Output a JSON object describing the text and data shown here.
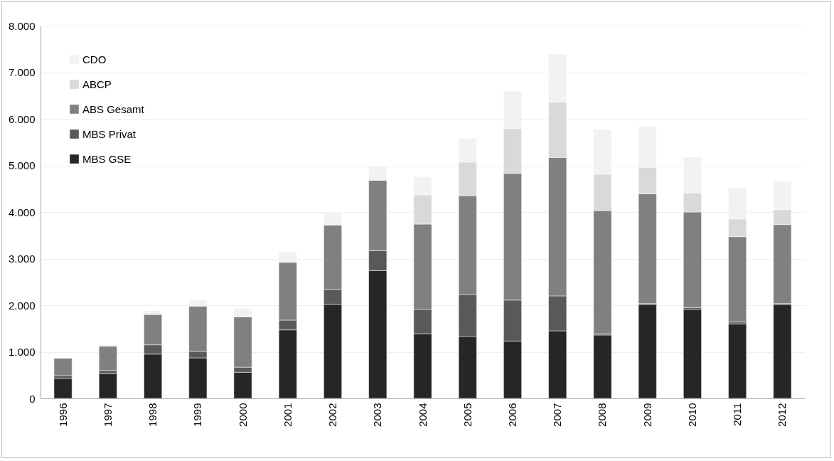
{
  "chart_data": {
    "type": "bar",
    "stacked": true,
    "categories": [
      "1996",
      "1997",
      "1998",
      "1999",
      "2000",
      "2001",
      "2002",
      "2003",
      "2004",
      "2005",
      "2006",
      "2007",
      "2008",
      "2009",
      "2010",
      "2011",
      "2012"
    ],
    "series": [
      {
        "name": "MBS GSE",
        "color": "#262626",
        "values": [
          430,
          530,
          950,
          870,
          560,
          1470,
          2020,
          2740,
          1390,
          1330,
          1230,
          1450,
          1360,
          2010,
          1910,
          1600,
          2010
        ]
      },
      {
        "name": "MBS Privat",
        "color": "#595959",
        "values": [
          60,
          70,
          200,
          140,
          110,
          210,
          320,
          430,
          520,
          900,
          880,
          750,
          30,
          30,
          40,
          40,
          30
        ]
      },
      {
        "name": "ABS Gesamt",
        "color": "#808080",
        "values": [
          370,
          520,
          650,
          970,
          1080,
          1240,
          1380,
          1510,
          1830,
          2120,
          2720,
          2970,
          2640,
          2350,
          2050,
          1830,
          1690
        ]
      },
      {
        "name": "ABCP",
        "color": "#d9d9d9",
        "values": [
          null,
          null,
          null,
          null,
          null,
          null,
          null,
          null,
          630,
          720,
          960,
          1190,
          780,
          570,
          410,
          380,
          320
        ]
      },
      {
        "name": "CDO",
        "color": "#f2f2f2",
        "values": [
          null,
          30,
          90,
          130,
          180,
          220,
          260,
          300,
          390,
          510,
          800,
          1030,
          960,
          880,
          770,
          680,
          610
        ]
      }
    ],
    "ylim": [
      0,
      8000
    ],
    "yticks": [
      0,
      {
        "value": 1000,
        "label": "1.000"
      },
      {
        "value": 2000,
        "label": "2.000"
      },
      {
        "value": 3000,
        "label": "3.000"
      },
      {
        "value": 4000,
        "label": "4.000"
      },
      {
        "value": 5000,
        "label": "5.000"
      },
      {
        "value": 6000,
        "label": "6.000"
      },
      {
        "value": 7000,
        "label": "7.000"
      },
      {
        "value": 8000,
        "label": "8.000"
      }
    ],
    "grid": "y",
    "legend": "top left"
  }
}
